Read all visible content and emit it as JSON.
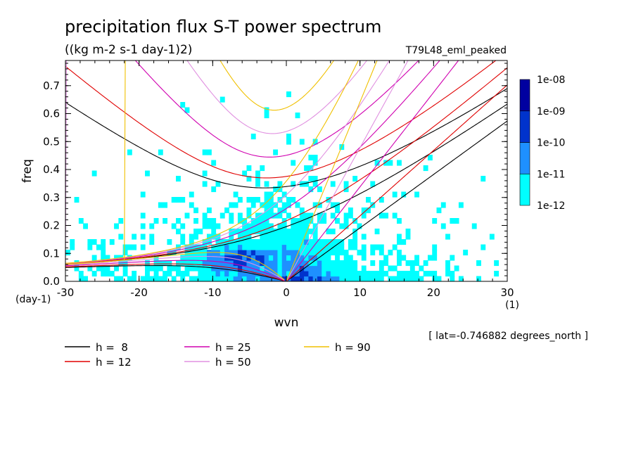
{
  "chart_data": {
    "type": "heatmap",
    "title": "precipitation flux S-T power spectrum",
    "subtitle": "((kg m-2 s-1 day-1)2)",
    "run_label": "T79L48_eml_peaked",
    "xlabel": "wvn",
    "ylabel": "freq",
    "x_unit": "(1)",
    "y_unit": "(day-1)",
    "xlim": [
      -30,
      30
    ],
    "ylim": [
      0,
      0.79
    ],
    "x_ticks": [
      -30,
      -20,
      -10,
      0,
      10,
      20,
      30
    ],
    "x_tick_labels": [
      "-30",
      "-20",
      "-10",
      "0",
      "10",
      "20",
      "30"
    ],
    "y_ticks": [
      0,
      0.1,
      0.2,
      0.3,
      0.4,
      0.5,
      0.6,
      0.7
    ],
    "y_tick_labels": [
      "0.0",
      "0.1",
      "0.2",
      "0.3",
      "0.4",
      "0.5",
      "0.6",
      "0.7"
    ],
    "colorbar": {
      "levels": [
        "1e-12",
        "1e-11",
        "1e-10",
        "1e-09",
        "1e-08"
      ],
      "colors": [
        "#00ffff",
        "#1e90ff",
        "#0033cc",
        "#0000a0",
        "#4b0fa8"
      ]
    },
    "location_note": "[ lat=-0.746882 degrees_north ]",
    "dispersion_curves": [
      {
        "label": "h =  8",
        "h": 8,
        "color": "#000000"
      },
      {
        "label": "h = 12",
        "h": 12,
        "color": "#e00000"
      },
      {
        "label": "h = 25",
        "h": 25,
        "color": "#d000b0"
      },
      {
        "label": "h = 50",
        "h": 50,
        "color": "#e090e0"
      },
      {
        "label": "h = 90",
        "h": 90,
        "color": "#f0c000"
      }
    ],
    "legend_placement": "bottom",
    "grid": false
  }
}
